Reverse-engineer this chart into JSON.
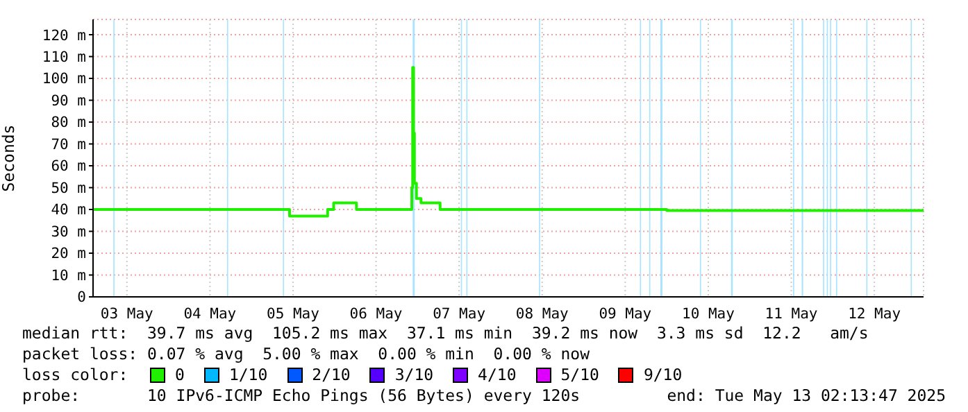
{
  "chart_data": {
    "type": "step",
    "ylabel": "Seconds",
    "legend_title": "loss color:",
    "legend": "bottom",
    "grid": true,
    "xlim": [
      "2025-05-03T02:13",
      "2025-05-13T02:13"
    ],
    "xticks": [
      {
        "value": "2025-05-03T12:00",
        "label": "03 May"
      },
      {
        "value": "2025-05-04T12:00",
        "label": "04 May"
      },
      {
        "value": "2025-05-05T12:00",
        "label": "05 May"
      },
      {
        "value": "2025-05-06T12:00",
        "label": "06 May"
      },
      {
        "value": "2025-05-07T12:00",
        "label": "07 May"
      },
      {
        "value": "2025-05-08T12:00",
        "label": "08 May"
      },
      {
        "value": "2025-05-09T12:00",
        "label": "09 May"
      },
      {
        "value": "2025-05-10T12:00",
        "label": "10 May"
      },
      {
        "value": "2025-05-11T12:00",
        "label": "11 May"
      },
      {
        "value": "2025-05-12T12:00",
        "label": "12 May"
      }
    ],
    "ylim": [
      0,
      127
    ],
    "yticks": [
      0,
      {
        "value": 10,
        "label": "10 m"
      },
      {
        "value": 20,
        "label": "20 m"
      },
      {
        "value": 30,
        "label": "30 m"
      },
      {
        "value": 40,
        "label": "40 m"
      },
      {
        "value": 50,
        "label": "50 m"
      },
      {
        "value": 60,
        "label": "60 m"
      },
      {
        "value": 70,
        "label": "70 m"
      },
      {
        "value": 80,
        "label": "80 m"
      },
      {
        "value": 90,
        "label": "90 m"
      },
      {
        "value": 100,
        "label": "100 m"
      },
      {
        "value": 110,
        "label": "110 m"
      },
      {
        "value": 120,
        "label": "120 m"
      }
    ],
    "x": [
      "2025-05-03T02:13",
      "2025-05-05T11:00",
      "2025-05-05T22:00",
      "2025-05-05T23:45",
      "2025-05-06T06:20",
      "2025-05-06T22:20",
      "2025-05-06T22:35",
      "2025-05-06T22:50",
      "2025-05-06T23:05",
      "2025-05-06T23:40",
      "2025-05-07T01:00",
      "2025-05-07T06:30",
      "2025-05-10T00:00",
      "2025-05-13T02:13"
    ],
    "series": [
      {
        "name": "0",
        "color": "#20f000",
        "values": [
          40,
          37,
          40,
          43,
          40,
          50,
          105,
          75,
          52,
          45,
          43,
          40,
          39.5,
          39.5
        ]
      },
      {
        "name": "1/10",
        "color": "#00b8ff",
        "values": [
          null,
          null,
          null,
          null,
          null,
          null,
          null,
          null,
          null,
          null,
          null,
          null,
          null,
          null
        ]
      },
      {
        "name": "2/10",
        "color": "#0059ff",
        "values": [
          null,
          null,
          null,
          null,
          null,
          null,
          null,
          null,
          null,
          null,
          null,
          null,
          null,
          null
        ]
      },
      {
        "name": "3/10",
        "color": "#5500ff",
        "values": [
          null,
          null,
          null,
          null,
          null,
          null,
          null,
          null,
          null,
          null,
          null,
          null,
          null,
          null
        ]
      },
      {
        "name": "4/10",
        "color": "#7e00ff",
        "values": [
          null,
          null,
          null,
          null,
          null,
          null,
          null,
          null,
          null,
          null,
          null,
          null,
          null,
          null
        ]
      },
      {
        "name": "5/10",
        "color": "#dd00ff",
        "values": [
          null,
          null,
          null,
          null,
          null,
          null,
          null,
          null,
          null,
          null,
          null,
          null,
          null,
          null
        ]
      },
      {
        "name": "9/10",
        "color": "#ff0000",
        "values": [
          null,
          null,
          null,
          null,
          null,
          null,
          null,
          null,
          null,
          null,
          null,
          null,
          null,
          null
        ]
      }
    ],
    "bands": [
      {
        "axis": "x",
        "from": "2025-05-03T08:05",
        "to": "2025-05-03T08:25",
        "color": "#a8e4ff"
      },
      {
        "axis": "x",
        "from": "2025-05-04T16:55",
        "to": "2025-05-04T17:15",
        "color": "#a8e4ff"
      },
      {
        "axis": "x",
        "from": "2025-05-05T09:05",
        "to": "2025-05-05T09:25",
        "color": "#a8e4ff"
      },
      {
        "axis": "x",
        "from": "2025-05-06T22:35",
        "to": "2025-05-06T23:10",
        "color": "#a8e4ff"
      },
      {
        "axis": "x",
        "from": "2025-05-07T12:30",
        "to": "2025-05-07T12:50",
        "color": "#a8e4ff"
      },
      {
        "axis": "x",
        "from": "2025-05-07T14:05",
        "to": "2025-05-07T14:25",
        "color": "#a8e4ff"
      },
      {
        "axis": "x",
        "from": "2025-05-08T11:05",
        "to": "2025-05-08T11:25",
        "color": "#a8e4ff"
      },
      {
        "axis": "x",
        "from": "2025-05-09T16:15",
        "to": "2025-05-09T16:35",
        "color": "#a8e4ff"
      },
      {
        "axis": "x",
        "from": "2025-05-09T18:55",
        "to": "2025-05-09T19:15",
        "color": "#a8e4ff"
      },
      {
        "axis": "x",
        "from": "2025-05-09T22:10",
        "to": "2025-05-09T22:45",
        "color": "#a8e4ff"
      },
      {
        "axis": "x",
        "from": "2025-05-10T09:35",
        "to": "2025-05-10T09:55",
        "color": "#a8e4ff"
      },
      {
        "axis": "x",
        "from": "2025-05-10T18:35",
        "to": "2025-05-10T19:05",
        "color": "#a8e4ff"
      },
      {
        "axis": "x",
        "from": "2025-05-11T12:30",
        "to": "2025-05-11T12:50",
        "color": "#a8e4ff"
      },
      {
        "axis": "x",
        "from": "2025-05-11T15:00",
        "to": "2025-05-11T15:25",
        "color": "#a8e4ff"
      },
      {
        "axis": "x",
        "from": "2025-05-11T21:10",
        "to": "2025-05-11T21:30",
        "color": "#a8e4ff"
      },
      {
        "axis": "x",
        "from": "2025-05-11T22:15",
        "to": "2025-05-11T22:35",
        "color": "#a8e4ff"
      },
      {
        "axis": "x",
        "from": "2025-05-11T23:10",
        "to": "2025-05-11T23:30",
        "color": "#a8e4ff"
      },
      {
        "axis": "x",
        "from": "2025-05-12T00:55",
        "to": "2025-05-12T01:15",
        "color": "#a8e4ff"
      },
      {
        "axis": "x",
        "from": "2025-05-12T09:40",
        "to": "2025-05-12T10:00",
        "color": "#a8e4ff"
      },
      {
        "axis": "x",
        "from": "2025-05-12T22:30",
        "to": "2025-05-12T22:50",
        "color": "#a8e4ff"
      }
    ],
    "annotations": [
      "median rtt:  39.7 ms avg  105.2 ms max  37.1 ms min  39.2 ms now  3.3 ms sd  12.2   am/s",
      "packet loss: 0.07 % avg  5.00 % max  0.00 % min  0.00 % now",
      "probe:       10 IPv6-ICMP Echo Pings (56 Bytes) every 120s",
      "end: Tue May 13 02:13:47 2025"
    ]
  }
}
